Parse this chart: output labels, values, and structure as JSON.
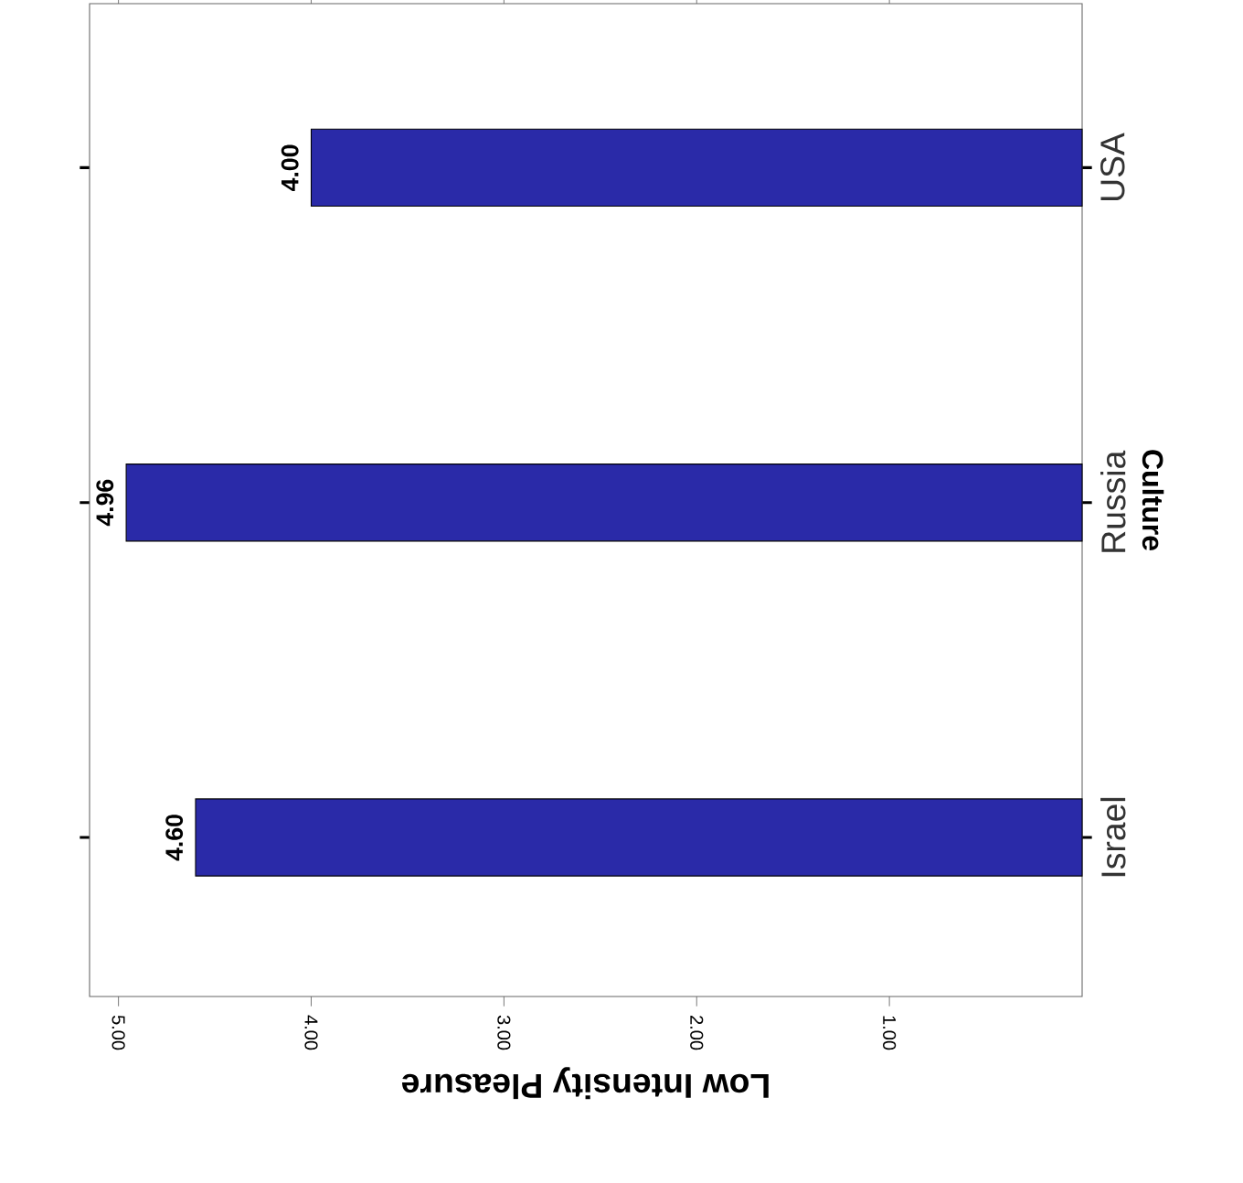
{
  "chart_data": {
    "type": "bar",
    "orientation": "horizontal",
    "xlabel": "Low Intensity Pleasure",
    "ylabel": "Culture",
    "categories": [
      "USA",
      "Russia",
      "Israel"
    ],
    "values": [
      4.0,
      4.96,
      4.6
    ],
    "value_labels": [
      "4.00",
      "4.96",
      "4.60"
    ],
    "color": "#2a2aa8",
    "xlim": [
      5.15,
      0
    ],
    "xticks": [
      {
        "value": 5,
        "label": "5.00"
      },
      {
        "value": 4,
        "label": "4.00"
      },
      {
        "value": 3,
        "label": "3.00"
      },
      {
        "value": 2,
        "label": "2.00"
      },
      {
        "value": 1,
        "label": "1.00"
      }
    ]
  }
}
